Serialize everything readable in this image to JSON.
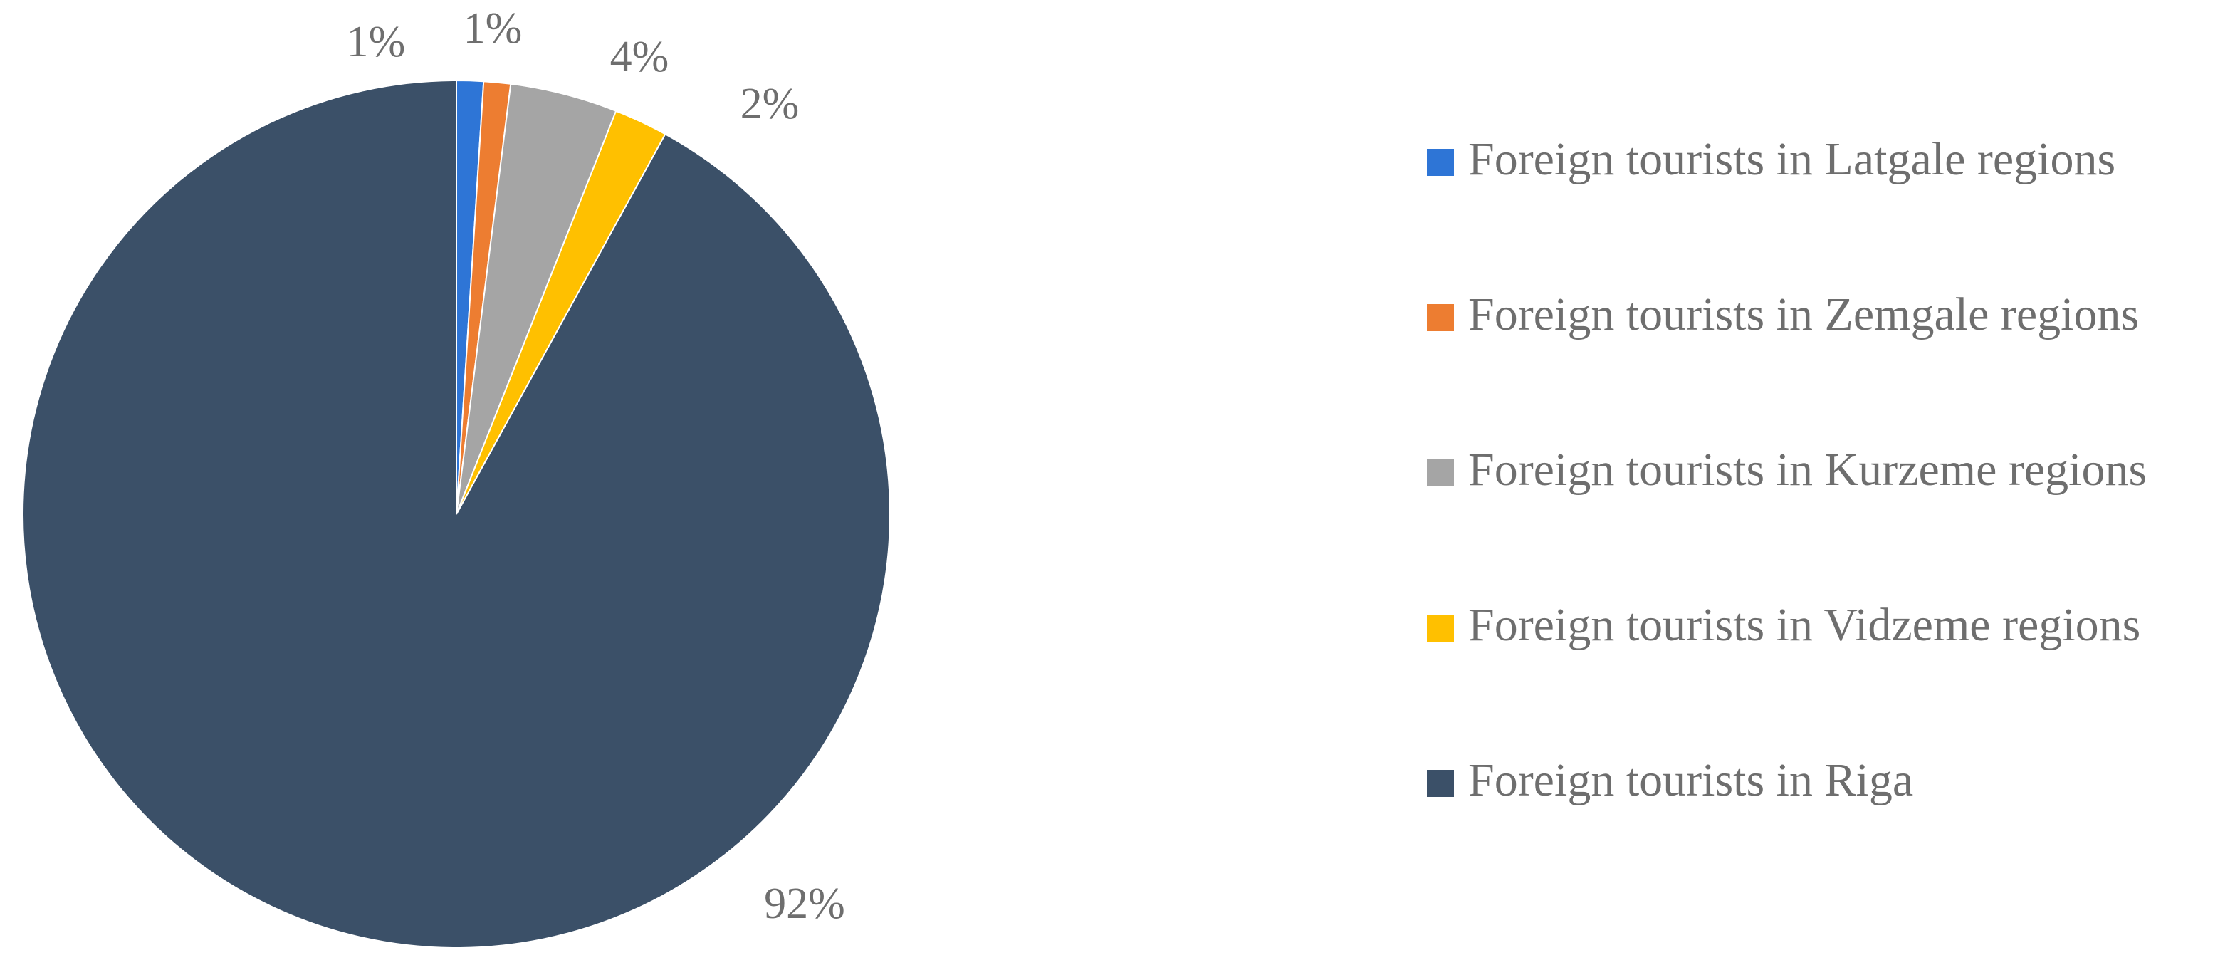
{
  "chart_data": {
    "type": "pie",
    "categories": [
      "Foreign tourists in Latgale regions",
      "Foreign tourists in Zemgale regions",
      "Foreign tourists in Kurzeme regions",
      "Foreign tourists in Vidzeme regions",
      "Foreign tourists in Riga"
    ],
    "values": [
      1,
      1,
      4,
      2,
      92
    ],
    "value_labels": [
      "1%",
      "1%",
      "4%",
      "2%",
      "92%"
    ],
    "colors": [
      "#2e75d6",
      "#ed7d31",
      "#a5a5a5",
      "#ffc000",
      "#3b5068"
    ],
    "legend": "right"
  }
}
